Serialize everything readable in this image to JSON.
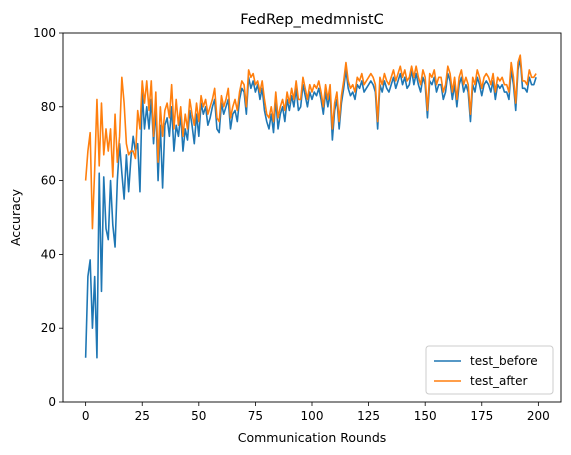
{
  "chart_data": {
    "type": "line",
    "title": "FedRep_medmnistC",
    "xlabel": "Communication Rounds",
    "ylabel": "Accuracy",
    "xlim": [
      -10,
      210
    ],
    "ylim": [
      0,
      100
    ],
    "xticks": [
      0,
      25,
      50,
      75,
      100,
      125,
      150,
      175,
      200
    ],
    "yticks": [
      0,
      20,
      40,
      60,
      80,
      100
    ],
    "grid": false,
    "legend_position": "lower-right",
    "x": [
      0,
      1,
      2,
      3,
      4,
      5,
      6,
      7,
      8,
      9,
      10,
      11,
      12,
      13,
      14,
      15,
      16,
      17,
      18,
      19,
      20,
      21,
      22,
      23,
      24,
      25,
      26,
      27,
      28,
      29,
      30,
      31,
      32,
      33,
      34,
      35,
      36,
      37,
      38,
      39,
      40,
      41,
      42,
      43,
      44,
      45,
      46,
      47,
      48,
      49,
      50,
      51,
      52,
      53,
      54,
      55,
      56,
      57,
      58,
      59,
      60,
      61,
      62,
      63,
      64,
      65,
      66,
      67,
      68,
      69,
      70,
      71,
      72,
      73,
      74,
      75,
      76,
      77,
      78,
      79,
      80,
      81,
      82,
      83,
      84,
      85,
      86,
      87,
      88,
      89,
      90,
      91,
      92,
      93,
      94,
      95,
      96,
      97,
      98,
      99,
      100,
      101,
      102,
      103,
      104,
      105,
      106,
      107,
      108,
      109,
      110,
      111,
      112,
      113,
      114,
      115,
      116,
      117,
      118,
      119,
      120,
      121,
      122,
      123,
      124,
      125,
      126,
      127,
      128,
      129,
      130,
      131,
      132,
      133,
      134,
      135,
      136,
      137,
      138,
      139,
      140,
      141,
      142,
      143,
      144,
      145,
      146,
      147,
      148,
      149,
      150,
      151,
      152,
      153,
      154,
      155,
      156,
      157,
      158,
      159,
      160,
      161,
      162,
      163,
      164,
      165,
      166,
      167,
      168,
      169,
      170,
      171,
      172,
      173,
      174,
      175,
      176,
      177,
      178,
      179,
      180,
      181,
      182,
      183,
      184,
      185,
      186,
      187,
      188,
      189,
      190,
      191,
      192,
      193,
      194,
      195,
      196,
      197,
      198,
      199
    ],
    "series": [
      {
        "name": "test_before",
        "color": "#1f77b4",
        "values": [
          12,
          34,
          38.5,
          20,
          34,
          12,
          62,
          30,
          61,
          47,
          44,
          60,
          48,
          42,
          60,
          70,
          62,
          55,
          67,
          57,
          66,
          72,
          68,
          70,
          57,
          84,
          74,
          80,
          74,
          82,
          70,
          80,
          60,
          75,
          58,
          75,
          77,
          72,
          80,
          68,
          75,
          72,
          78,
          68,
          74,
          71,
          79,
          75,
          70,
          78,
          72,
          81,
          78,
          80,
          75,
          77,
          80,
          82,
          74,
          73,
          81,
          78,
          80,
          82,
          74,
          78,
          79,
          76,
          82,
          85,
          84,
          78,
          88,
          85,
          87,
          84,
          86,
          82,
          85,
          79,
          76,
          74,
          78,
          73,
          82,
          74,
          78,
          80,
          76,
          82,
          79,
          83,
          80,
          85,
          79,
          80,
          86,
          83,
          80,
          84,
          82,
          84,
          83,
          85,
          82,
          78,
          84,
          80,
          84,
          71,
          79,
          82,
          74,
          81,
          85,
          90,
          85,
          83,
          84,
          82,
          86,
          85,
          87,
          84,
          85,
          86,
          87,
          86,
          84,
          74,
          86,
          84,
          87,
          85,
          84,
          86,
          88,
          85,
          87,
          89,
          86,
          88,
          85,
          86,
          90,
          86,
          89,
          86,
          84,
          88,
          86,
          77,
          87,
          86,
          88,
          84,
          86,
          86,
          82,
          84,
          89,
          87,
          82,
          86,
          80,
          86,
          88,
          84,
          86,
          84,
          76,
          86,
          84,
          88,
          86,
          83,
          86,
          87,
          86,
          84,
          87,
          82,
          86,
          85,
          86,
          84,
          84,
          82,
          90,
          86,
          79,
          90,
          93,
          85,
          85,
          84,
          88,
          86,
          86,
          88
        ]
      },
      {
        "name": "test_after",
        "color": "#ff7f0e",
        "values": [
          60,
          68,
          73,
          47,
          63,
          82,
          64,
          81,
          67,
          74,
          68,
          74,
          61,
          78,
          65,
          72,
          88,
          81,
          70,
          67,
          68,
          68,
          66,
          79,
          74,
          87,
          81,
          87,
          79,
          87,
          72,
          84,
          65,
          80,
          72,
          79,
          81,
          77,
          86,
          74,
          82,
          75,
          80,
          72,
          78,
          74,
          82,
          78,
          75,
          81,
          76,
          83,
          80,
          82,
          78,
          80,
          82,
          85,
          77,
          76,
          83,
          80,
          82,
          85,
          77,
          80,
          82,
          79,
          84,
          87,
          86,
          80,
          90,
          88,
          89,
          86,
          87,
          84,
          87,
          82,
          78,
          77,
          80,
          76,
          84,
          77,
          80,
          82,
          79,
          84,
          81,
          85,
          82,
          87,
          82,
          82,
          88,
          85,
          82,
          86,
          84,
          86,
          85,
          87,
          84,
          80,
          86,
          82,
          86,
          74,
          81,
          84,
          76,
          83,
          87,
          92,
          87,
          85,
          86,
          84,
          88,
          87,
          89,
          86,
          87,
          88,
          89,
          88,
          86,
          76,
          88,
          86,
          89,
          87,
          86,
          88,
          90,
          87,
          89,
          91,
          88,
          90,
          87,
          88,
          91,
          88,
          91,
          88,
          86,
          90,
          88,
          79,
          89,
          88,
          90,
          86,
          88,
          88,
          84,
          86,
          91,
          89,
          84,
          88,
          82,
          88,
          90,
          86,
          88,
          86,
          78,
          88,
          86,
          90,
          88,
          85,
          88,
          89,
          88,
          86,
          89,
          84,
          88,
          87,
          88,
          86,
          86,
          84,
          92,
          88,
          81,
          92,
          94,
          87,
          87,
          86,
          90,
          88,
          88,
          89
        ]
      }
    ]
  }
}
